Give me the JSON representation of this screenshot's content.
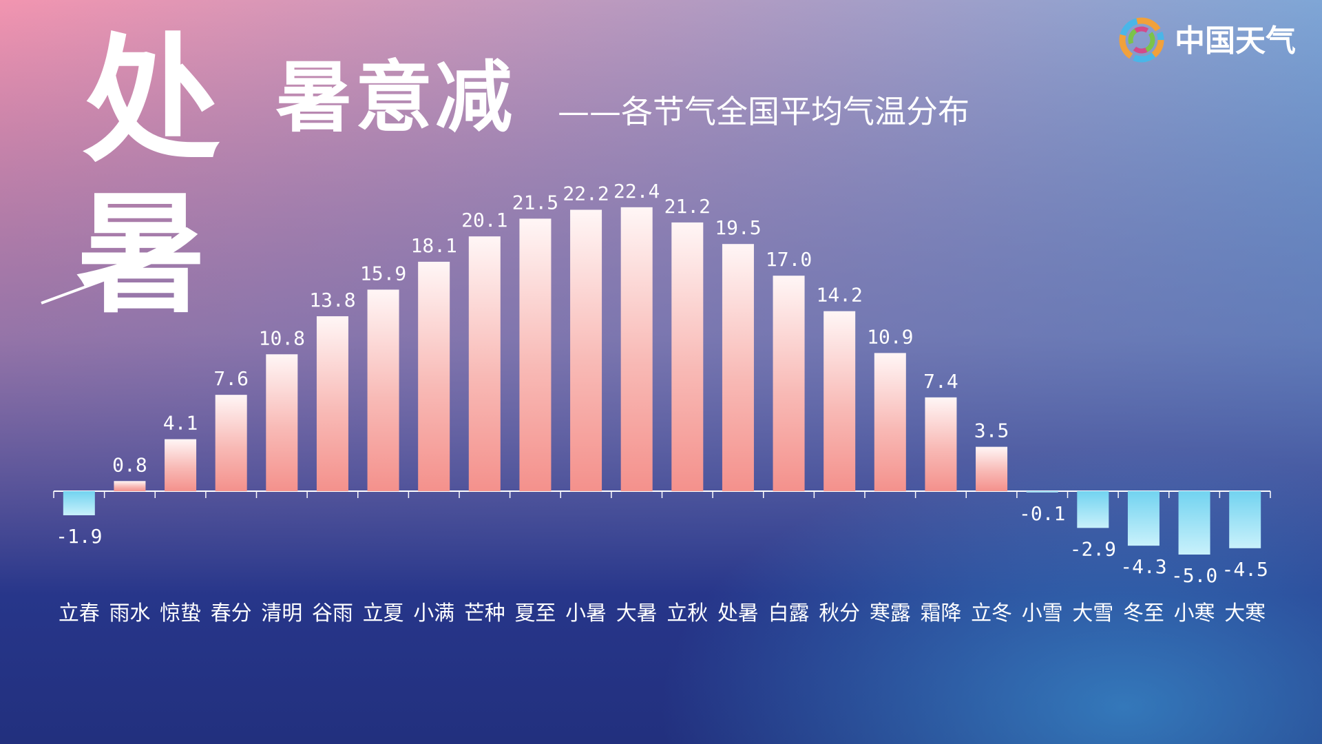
{
  "heading_chars": [
    "处",
    "暑"
  ],
  "logo": "中国天气",
  "chart_data": {
    "type": "bar",
    "title": "暑意减",
    "subtitle": "——各节气全国平均气温分布",
    "categories": [
      "立春",
      "雨水",
      "惊蛰",
      "春分",
      "清明",
      "谷雨",
      "立夏",
      "小满",
      "芒种",
      "夏至",
      "小暑",
      "大暑",
      "立秋",
      "处暑",
      "白露",
      "秋分",
      "寒露",
      "霜降",
      "立冬",
      "小雪",
      "大雪",
      "冬至",
      "小寒",
      "大寒"
    ],
    "values": [
      -1.9,
      0.8,
      4.1,
      7.6,
      10.8,
      13.8,
      15.9,
      18.1,
      20.1,
      21.5,
      22.2,
      22.4,
      21.2,
      19.5,
      17.0,
      14.2,
      10.9,
      7.4,
      3.5,
      -0.1,
      -2.9,
      -4.3,
      -5.0,
      -4.5
    ],
    "value_labels": [
      "-1.9",
      "0.8",
      "4.1",
      "7.6",
      "10.8",
      "13.8",
      "15.9",
      "18.1",
      "20.1",
      "21.5",
      "22.2",
      "22.4",
      "21.2",
      "19.5",
      "17.0",
      "14.2",
      "10.9",
      "7.4",
      "3.5",
      "-0.1",
      "-2.9",
      "-4.3",
      "-5.0",
      "-4.5"
    ],
    "color": "#f4918c",
    "negative_color": "#72d3f0"
  }
}
